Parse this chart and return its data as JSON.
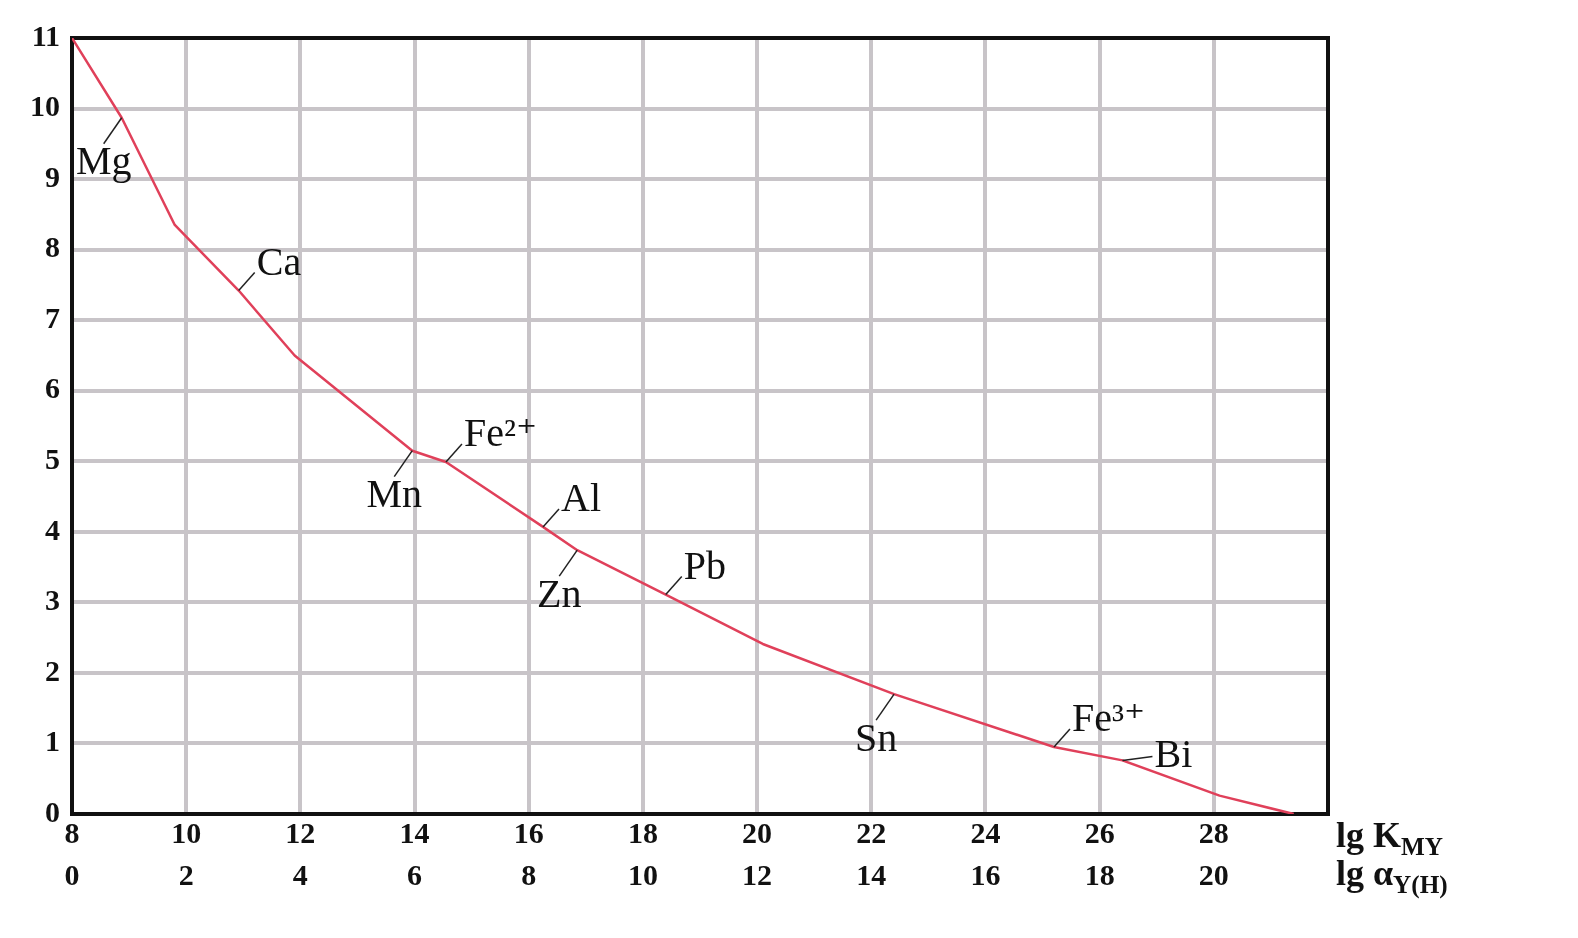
{
  "chart_data": {
    "type": "line",
    "xlabel": "lg K$_{MY}$",
    "x2label": "lg α$_{Y(H)}$",
    "x": [
      8,
      8.87,
      9.8,
      10.92,
      11.9,
      13.96,
      14.55,
      16.25,
      16.85,
      18.4,
      20.1,
      22.4,
      25.2,
      26.4,
      28.1,
      29.4
    ],
    "series": [
      {
        "color": "#e0405a",
        "values": [
          11,
          9.87,
          8.35,
          7.42,
          6.5,
          5.15,
          4.99,
          4.07,
          3.74,
          3.11,
          2.41,
          1.7,
          0.95,
          0.76,
          0.26,
          0
        ]
      }
    ],
    "xlim": [
      8,
      30
    ],
    "xticks": [
      8,
      10,
      12,
      14,
      16,
      18,
      20,
      22,
      24,
      26,
      28
    ],
    "x2lim": [
      0,
      22
    ],
    "x2ticks": [
      0,
      2,
      4,
      6,
      8,
      10,
      12,
      14,
      16,
      18,
      20
    ],
    "ylim": [
      0,
      11
    ],
    "yticks": [
      0,
      1,
      2,
      3,
      4,
      5,
      6,
      7,
      8,
      9,
      10,
      11
    ],
    "grid": true,
    "marker": "none",
    "line_style": "solid",
    "annotations": [
      {
        "text": "Mg",
        "x": 8.87,
        "y": 9.87
      },
      {
        "text": "Ca",
        "x": 10.92,
        "y": 7.42
      },
      {
        "text": "Mn",
        "x": 13.96,
        "y": 5.15
      },
      {
        "text": "Fe²⁺",
        "x": 14.55,
        "y": 4.99
      },
      {
        "text": "Zn",
        "x": 16.85,
        "y": 3.74
      },
      {
        "text": "Al",
        "x": 16.25,
        "y": 4.07
      },
      {
        "text": "Sn",
        "x": 22.4,
        "y": 1.7
      },
      {
        "text": "Pb",
        "x": 18.4,
        "y": 3.11
      },
      {
        "text": "Bi",
        "x": 26.4,
        "y": 0.76
      },
      {
        "text": "Fe³⁺",
        "x": 25.2,
        "y": 0.95
      }
    ]
  }
}
